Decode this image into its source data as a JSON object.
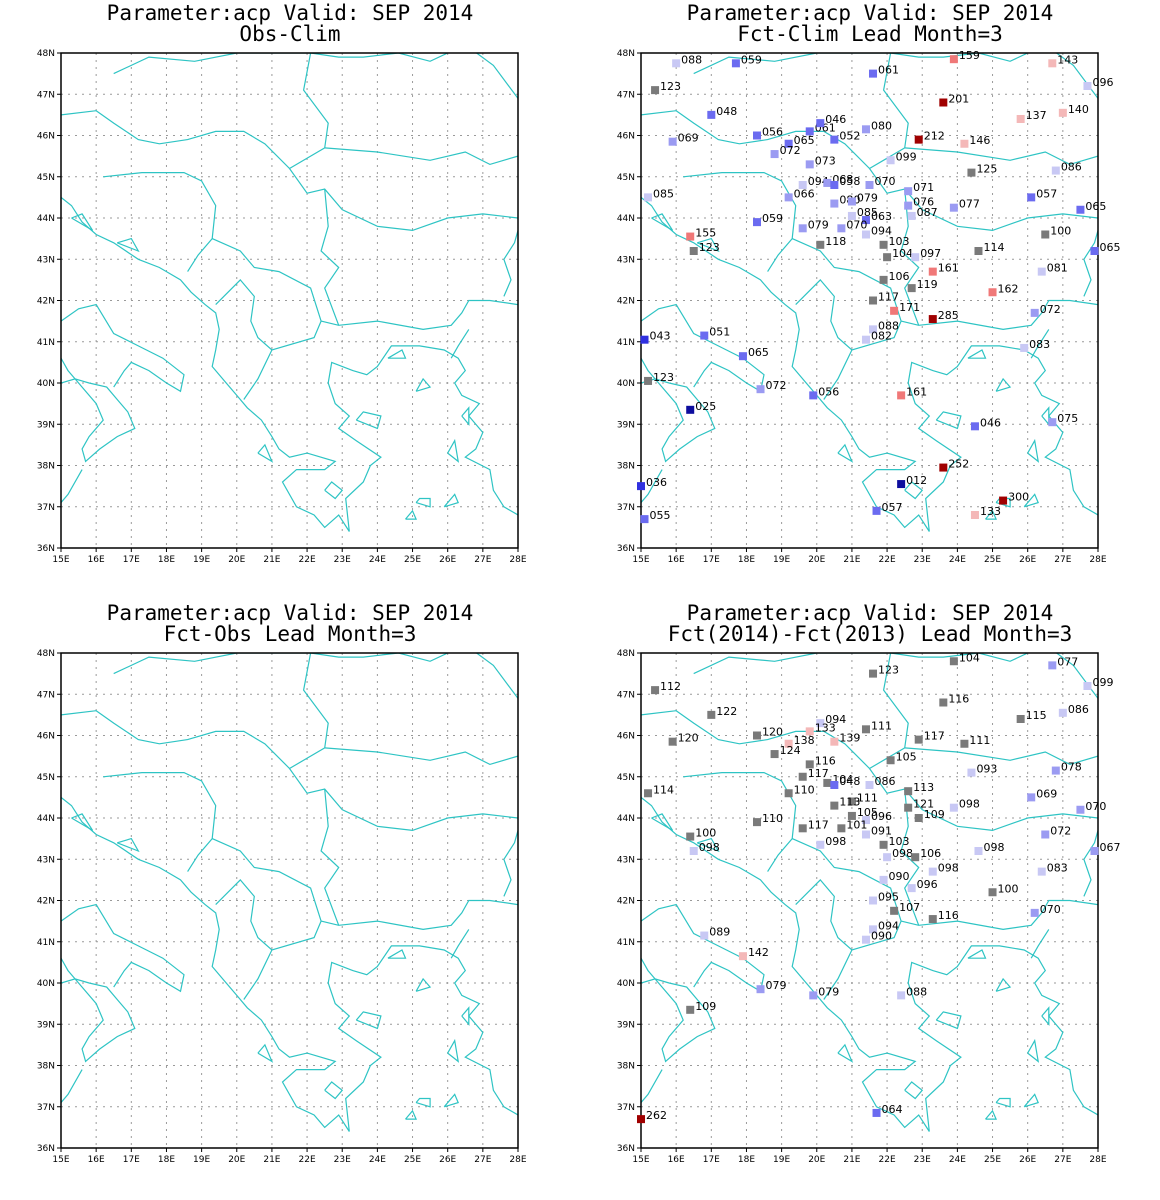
{
  "colors": {
    "coast": "#2ec4c4",
    "grid": "#9a9a9a",
    "frame": "#000000"
  },
  "axes": {
    "lon_labels": [
      "15E",
      "16E",
      "17E",
      "18E",
      "19E",
      "20E",
      "21E",
      "22E",
      "23E",
      "24E",
      "25E",
      "26E",
      "27E",
      "28E"
    ],
    "lat_labels": [
      "48N",
      "47N",
      "46N",
      "45N",
      "44N",
      "43N",
      "42N",
      "41N",
      "40N",
      "39N",
      "38N",
      "37N",
      "36N"
    ]
  },
  "panels": [
    {
      "id": "obs-clim",
      "title_line1": "Parameter:acp Valid: SEP 2014",
      "title_line2": "Obs-Clim",
      "stations": []
    },
    {
      "id": "fct-clim",
      "title_line1": "Parameter:acp Valid: SEP 2014",
      "title_line2": "Fct-Clim Lead Month=3",
      "stations": [
        {
          "lon": 16.0,
          "lat": 47.75,
          "value": "088"
        },
        {
          "lon": 17.7,
          "lat": 47.75,
          "value": "059"
        },
        {
          "lon": 21.6,
          "lat": 47.5,
          "value": "061"
        },
        {
          "lon": 23.9,
          "lat": 47.85,
          "value": "159"
        },
        {
          "lon": 26.7,
          "lat": 47.75,
          "value": "143"
        },
        {
          "lon": 27.7,
          "lat": 47.2,
          "value": "096"
        },
        {
          "lon": 15.4,
          "lat": 47.1,
          "value": "123"
        },
        {
          "lon": 17.0,
          "lat": 46.5,
          "value": "048"
        },
        {
          "lon": 23.6,
          "lat": 46.8,
          "value": "201"
        },
        {
          "lon": 25.8,
          "lat": 46.4,
          "value": "137"
        },
        {
          "lon": 27.0,
          "lat": 46.55,
          "value": "140"
        },
        {
          "lon": 18.3,
          "lat": 46.0,
          "value": "056"
        },
        {
          "lon": 19.8,
          "lat": 46.1,
          "value": "061"
        },
        {
          "lon": 20.1,
          "lat": 46.3,
          "value": "046"
        },
        {
          "lon": 20.5,
          "lat": 45.9,
          "value": "052"
        },
        {
          "lon": 21.4,
          "lat": 46.15,
          "value": "080"
        },
        {
          "lon": 15.9,
          "lat": 45.85,
          "value": "069"
        },
        {
          "lon": 19.2,
          "lat": 45.8,
          "value": "065"
        },
        {
          "lon": 18.8,
          "lat": 45.55,
          "value": "072"
        },
        {
          "lon": 22.9,
          "lat": 45.9,
          "value": "212"
        },
        {
          "lon": 24.2,
          "lat": 45.8,
          "value": "146"
        },
        {
          "lon": 19.8,
          "lat": 45.3,
          "value": "073"
        },
        {
          "lon": 22.1,
          "lat": 45.4,
          "value": "099"
        },
        {
          "lon": 24.4,
          "lat": 45.1,
          "value": "125"
        },
        {
          "lon": 26.8,
          "lat": 45.15,
          "value": "086"
        },
        {
          "lon": 19.6,
          "lat": 44.8,
          "value": "094"
        },
        {
          "lon": 20.3,
          "lat": 44.85,
          "value": "068"
        },
        {
          "lon": 20.5,
          "lat": 44.8,
          "value": "058"
        },
        {
          "lon": 21.5,
          "lat": 44.8,
          "value": "070"
        },
        {
          "lon": 22.6,
          "lat": 44.65,
          "value": "071"
        },
        {
          "lon": 26.1,
          "lat": 44.5,
          "value": "057"
        },
        {
          "lon": 15.2,
          "lat": 44.5,
          "value": "085"
        },
        {
          "lon": 19.2,
          "lat": 44.5,
          "value": "066"
        },
        {
          "lon": 20.5,
          "lat": 44.35,
          "value": "080"
        },
        {
          "lon": 21.0,
          "lat": 44.4,
          "value": "079"
        },
        {
          "lon": 22.6,
          "lat": 44.3,
          "value": "076"
        },
        {
          "lon": 23.9,
          "lat": 44.25,
          "value": "077"
        },
        {
          "lon": 27.5,
          "lat": 44.2,
          "value": "065"
        },
        {
          "lon": 21.0,
          "lat": 44.05,
          "value": "085"
        },
        {
          "lon": 21.4,
          "lat": 43.95,
          "value": "063"
        },
        {
          "lon": 22.7,
          "lat": 44.05,
          "value": "087"
        },
        {
          "lon": 18.3,
          "lat": 43.9,
          "value": "059"
        },
        {
          "lon": 19.6,
          "lat": 43.75,
          "value": "079"
        },
        {
          "lon": 20.7,
          "lat": 43.75,
          "value": "070"
        },
        {
          "lon": 21.4,
          "lat": 43.6,
          "value": "094"
        },
        {
          "lon": 16.4,
          "lat": 43.55,
          "value": "155"
        },
        {
          "lon": 26.5,
          "lat": 43.6,
          "value": "100"
        },
        {
          "lon": 16.5,
          "lat": 43.2,
          "value": "123"
        },
        {
          "lon": 20.1,
          "lat": 43.35,
          "value": "118"
        },
        {
          "lon": 21.9,
          "lat": 43.35,
          "value": "103"
        },
        {
          "lon": 22.0,
          "lat": 43.05,
          "value": "104"
        },
        {
          "lon": 22.8,
          "lat": 43.05,
          "value": "097"
        },
        {
          "lon": 24.6,
          "lat": 43.2,
          "value": "114"
        },
        {
          "lon": 27.9,
          "lat": 43.2,
          "value": "065"
        },
        {
          "lon": 23.3,
          "lat": 42.7,
          "value": "161"
        },
        {
          "lon": 26.4,
          "lat": 42.7,
          "value": "081"
        },
        {
          "lon": 21.9,
          "lat": 42.5,
          "value": "106"
        },
        {
          "lon": 22.7,
          "lat": 42.3,
          "value": "119"
        },
        {
          "lon": 25.0,
          "lat": 42.2,
          "value": "162"
        },
        {
          "lon": 21.6,
          "lat": 42.0,
          "value": "117"
        },
        {
          "lon": 22.2,
          "lat": 41.75,
          "value": "171"
        },
        {
          "lon": 26.2,
          "lat": 41.7,
          "value": "072"
        },
        {
          "lon": 23.3,
          "lat": 41.55,
          "value": "285"
        },
        {
          "lon": 21.6,
          "lat": 41.3,
          "value": "088"
        },
        {
          "lon": 21.4,
          "lat": 41.05,
          "value": "082"
        },
        {
          "lon": 15.1,
          "lat": 41.05,
          "value": "043"
        },
        {
          "lon": 16.8,
          "lat": 41.15,
          "value": "051"
        },
        {
          "lon": 25.9,
          "lat": 40.85,
          "value": "083"
        },
        {
          "lon": 17.9,
          "lat": 40.65,
          "value": "065"
        },
        {
          "lon": 15.2,
          "lat": 40.05,
          "value": "123"
        },
        {
          "lon": 18.4,
          "lat": 39.85,
          "value": "072"
        },
        {
          "lon": 19.9,
          "lat": 39.7,
          "value": "056"
        },
        {
          "lon": 22.4,
          "lat": 39.7,
          "value": "161"
        },
        {
          "lon": 16.4,
          "lat": 39.35,
          "value": "025"
        },
        {
          "lon": 26.7,
          "lat": 39.05,
          "value": "075"
        },
        {
          "lon": 24.5,
          "lat": 38.95,
          "value": "046"
        },
        {
          "lon": 23.6,
          "lat": 37.95,
          "value": "252"
        },
        {
          "lon": 22.4,
          "lat": 37.55,
          "value": "012"
        },
        {
          "lon": 15.0,
          "lat": 37.5,
          "value": "036"
        },
        {
          "lon": 25.3,
          "lat": 37.15,
          "value": "300"
        },
        {
          "lon": 21.7,
          "lat": 36.9,
          "value": "057"
        },
        {
          "lon": 24.5,
          "lat": 36.8,
          "value": "133"
        },
        {
          "lon": 15.1,
          "lat": 36.7,
          "value": "055"
        }
      ]
    },
    {
      "id": "fct-obs",
      "title_line1": "Parameter:acp Valid: SEP 2014",
      "title_line2": "Fct-Obs Lead Month=3",
      "stations": []
    },
    {
      "id": "fct2014-fct2013",
      "title_line1": "Parameter:acp Valid: SEP 2014",
      "title_line2": "Fct(2014)-Fct(2013) Lead Month=3",
      "stations": [
        {
          "lon": 21.6,
          "lat": 47.5,
          "value": "123"
        },
        {
          "lon": 23.9,
          "lat": 47.8,
          "value": "104"
        },
        {
          "lon": 26.7,
          "lat": 47.7,
          "value": "077"
        },
        {
          "lon": 27.7,
          "lat": 47.2,
          "value": "099"
        },
        {
          "lon": 15.4,
          "lat": 47.1,
          "value": "112"
        },
        {
          "lon": 23.6,
          "lat": 46.8,
          "value": "116"
        },
        {
          "lon": 17.0,
          "lat": 46.5,
          "value": "122"
        },
        {
          "lon": 25.8,
          "lat": 46.4,
          "value": "115"
        },
        {
          "lon": 27.0,
          "lat": 46.55,
          "value": "086"
        },
        {
          "lon": 20.1,
          "lat": 46.3,
          "value": "094"
        },
        {
          "lon": 19.8,
          "lat": 46.1,
          "value": "133"
        },
        {
          "lon": 21.4,
          "lat": 46.15,
          "value": "111"
        },
        {
          "lon": 18.3,
          "lat": 46.0,
          "value": "120"
        },
        {
          "lon": 15.9,
          "lat": 45.85,
          "value": "120"
        },
        {
          "lon": 19.2,
          "lat": 45.8,
          "value": "138"
        },
        {
          "lon": 20.5,
          "lat": 45.85,
          "value": "139"
        },
        {
          "lon": 22.9,
          "lat": 45.9,
          "value": "117"
        },
        {
          "lon": 24.2,
          "lat": 45.8,
          "value": "111"
        },
        {
          "lon": 18.8,
          "lat": 45.55,
          "value": "124"
        },
        {
          "lon": 22.1,
          "lat": 45.4,
          "value": "105"
        },
        {
          "lon": 19.8,
          "lat": 45.3,
          "value": "116"
        },
        {
          "lon": 24.4,
          "lat": 45.1,
          "value": "093"
        },
        {
          "lon": 26.8,
          "lat": 45.15,
          "value": "078"
        },
        {
          "lon": 19.6,
          "lat": 45.0,
          "value": "117"
        },
        {
          "lon": 20.3,
          "lat": 44.85,
          "value": "104"
        },
        {
          "lon": 20.5,
          "lat": 44.8,
          "value": "048"
        },
        {
          "lon": 21.5,
          "lat": 44.8,
          "value": "086"
        },
        {
          "lon": 22.6,
          "lat": 44.65,
          "value": "113"
        },
        {
          "lon": 19.2,
          "lat": 44.6,
          "value": "110"
        },
        {
          "lon": 15.2,
          "lat": 44.6,
          "value": "114"
        },
        {
          "lon": 26.1,
          "lat": 44.5,
          "value": "069"
        },
        {
          "lon": 21.0,
          "lat": 44.4,
          "value": "111"
        },
        {
          "lon": 20.5,
          "lat": 44.3,
          "value": "113"
        },
        {
          "lon": 22.6,
          "lat": 44.25,
          "value": "121"
        },
        {
          "lon": 23.9,
          "lat": 44.25,
          "value": "098"
        },
        {
          "lon": 27.5,
          "lat": 44.2,
          "value": "070"
        },
        {
          "lon": 21.0,
          "lat": 44.05,
          "value": "105"
        },
        {
          "lon": 21.4,
          "lat": 43.95,
          "value": "096"
        },
        {
          "lon": 22.9,
          "lat": 44.0,
          "value": "109"
        },
        {
          "lon": 18.3,
          "lat": 43.9,
          "value": "110"
        },
        {
          "lon": 19.6,
          "lat": 43.75,
          "value": "117"
        },
        {
          "lon": 20.7,
          "lat": 43.75,
          "value": "101"
        },
        {
          "lon": 21.4,
          "lat": 43.6,
          "value": "091"
        },
        {
          "lon": 26.5,
          "lat": 43.6,
          "value": "072"
        },
        {
          "lon": 16.4,
          "lat": 43.55,
          "value": "100"
        },
        {
          "lon": 20.1,
          "lat": 43.35,
          "value": "098"
        },
        {
          "lon": 21.9,
          "lat": 43.35,
          "value": "103"
        },
        {
          "lon": 16.5,
          "lat": 43.2,
          "value": "098"
        },
        {
          "lon": 24.6,
          "lat": 43.2,
          "value": "098"
        },
        {
          "lon": 27.9,
          "lat": 43.2,
          "value": "067"
        },
        {
          "lon": 22.0,
          "lat": 43.05,
          "value": "098"
        },
        {
          "lon": 22.8,
          "lat": 43.05,
          "value": "106"
        },
        {
          "lon": 26.4,
          "lat": 42.7,
          "value": "083"
        },
        {
          "lon": 23.3,
          "lat": 42.7,
          "value": "098"
        },
        {
          "lon": 21.9,
          "lat": 42.5,
          "value": "090"
        },
        {
          "lon": 22.7,
          "lat": 42.3,
          "value": "096"
        },
        {
          "lon": 25.0,
          "lat": 42.2,
          "value": "100"
        },
        {
          "lon": 21.6,
          "lat": 42.0,
          "value": "095"
        },
        {
          "lon": 22.2,
          "lat": 41.75,
          "value": "107"
        },
        {
          "lon": 26.2,
          "lat": 41.7,
          "value": "070"
        },
        {
          "lon": 23.3,
          "lat": 41.55,
          "value": "116"
        },
        {
          "lon": 21.6,
          "lat": 41.3,
          "value": "094"
        },
        {
          "lon": 21.4,
          "lat": 41.05,
          "value": "090"
        },
        {
          "lon": 16.8,
          "lat": 41.15,
          "value": "089"
        },
        {
          "lon": 17.9,
          "lat": 40.65,
          "value": "142"
        },
        {
          "lon": 18.4,
          "lat": 39.85,
          "value": "079"
        },
        {
          "lon": 19.9,
          "lat": 39.7,
          "value": "079"
        },
        {
          "lon": 22.4,
          "lat": 39.7,
          "value": "088"
        },
        {
          "lon": 16.4,
          "lat": 39.35,
          "value": "109"
        },
        {
          "lon": 21.7,
          "lat": 36.85,
          "value": "064"
        },
        {
          "lon": 15.0,
          "lat": 36.7,
          "value": "262"
        }
      ]
    }
  ]
}
